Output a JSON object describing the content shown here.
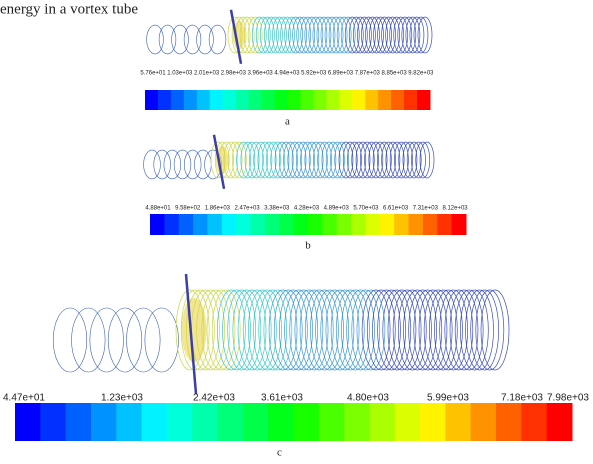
{
  "caption_text": "energy in a vortex tube",
  "panels": [
    {
      "colorbar_labels": [
        "5.76e+01",
        "1.03e+03",
        "2.01e+03",
        "2.98e+03",
        "3.96e+03",
        "4.94e+03",
        "5.92e+03",
        "6.89e+03",
        "7.87e+03",
        "8.85e+03",
        "9.82e+03"
      ],
      "label": "a"
    },
    {
      "colorbar_labels": [
        "4.88e+01",
        "9.58e+02",
        "1.86e+03",
        "2.47e+03",
        "3.38e+03",
        "4.28e+03",
        "4.89e+03",
        "5.70e+03",
        "6.61e+03",
        "7.31e+03",
        "8.12e+03"
      ],
      "label": "b"
    },
    {
      "colorbar_labels": [
        "4.47e+01",
        "1.23e+03",
        "2.42e+03",
        "3.61e+03",
        "4.80e+03",
        "5.99e+03",
        "7.18e+03",
        "7.98e+03"
      ],
      "label": "c"
    }
  ]
}
